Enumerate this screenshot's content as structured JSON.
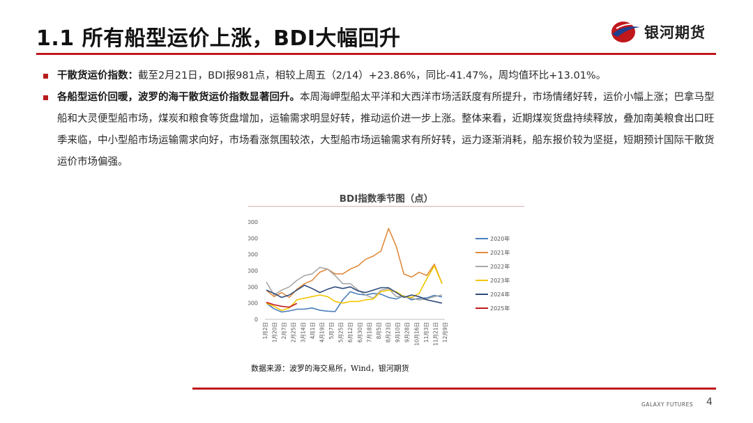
{
  "header": {
    "title": "1.1 所有船型运价上涨，BDI大幅回升",
    "logo_text": "银河期货",
    "accent_color": "#c0171c"
  },
  "bullets": [
    {
      "lead": "干散货运价指数：",
      "text": "截至2月21日，BDI报981点，相较上周五（2/14）+23.86%，同比-41.47%，周均值环比+13.01%。"
    },
    {
      "lead": "各船型运价回暖，波罗的海干散货运价指数显著回升。",
      "text": "本周海岬型船太平洋和大西洋市场活跃度有所提升，市场情绪好转，运价小幅上涨；巴拿马型船和大灵便型船市场，煤炭和粮食等货盘增加，运输需求明显好转，推动运价进一步上涨。整体来看，近期煤炭货盘持续释放，叠加南美粮食出口旺季来临，中小型船市场运输需求向好，市场看涨氛围较浓，大型船市场运输需求有所好转，运力逐渐消耗，船东报价较为坚挺，短期预计国际干散货运价市场偏强。"
    }
  ],
  "chart_data": {
    "type": "line",
    "title": "BDI指数季节图（点）",
    "ylim": [
      0,
      6000
    ],
    "yticks": [
      "6000",
      "5000",
      "4000",
      "3000",
      "2000",
      "1000",
      "0"
    ],
    "xticks": [
      "1月2日",
      "1月20日",
      "2月7日",
      "2月25日",
      "3月14日",
      "4月1日",
      "4月19日",
      "5月7日",
      "5月25日",
      "6月12日",
      "6月30日",
      "7月18日",
      "8月5日",
      "8月23日",
      "9月10日",
      "9月28日",
      "10月16日",
      "11月3日",
      "11月21日",
      "12月9日"
    ],
    "legend_position": "right",
    "series": [
      {
        "name": "2020年",
        "color": "#4a7ebb",
        "values": [
          1000,
          650,
          450,
          520,
          620,
          630,
          700,
          560,
          500,
          480,
          1200,
          1700,
          1550,
          1500,
          1600,
          1550,
          1350,
          1250,
          1450,
          1200,
          1300,
          1320,
          1480,
          1380
        ]
      },
      {
        "name": "2021年",
        "color": "#e08a3c",
        "values": [
          1800,
          1400,
          1650,
          1350,
          1850,
          2200,
          2400,
          2900,
          3100,
          2800,
          2800,
          3100,
          3300,
          3700,
          3900,
          4200,
          5600,
          4500,
          2800,
          2600,
          2900,
          2700,
          3400,
          2200
        ]
      },
      {
        "name": "2022年",
        "color": "#a6a6a6",
        "values": [
          2300,
          1500,
          1800,
          2000,
          2400,
          2700,
          2800,
          3200,
          3100,
          2700,
          2200,
          2200,
          1800,
          1500,
          1300,
          1800,
          1900,
          1400,
          1400,
          1300,
          1200,
          1250,
          1400,
          1500
        ]
      },
      {
        "name": "2023年",
        "color": "#f2c500",
        "values": [
          1000,
          800,
          550,
          700,
          1200,
          1300,
          1400,
          1500,
          1400,
          1100,
          1000,
          1100,
          1100,
          1200,
          1250,
          1700,
          1800,
          1700,
          1400,
          1350,
          1600,
          2500,
          3300,
          2200
        ]
      },
      {
        "name": "2024年",
        "color": "#2e4a7a",
        "values": [
          1800,
          1600,
          1350,
          1500,
          1800,
          2100,
          1900,
          1650,
          1850,
          2000,
          1900,
          2000,
          1750,
          1650,
          1800,
          1950,
          1950,
          1650,
          1350,
          1500,
          1400,
          1200,
          1100,
          1000
        ]
      },
      {
        "name": "2025年",
        "color": "#c0171c",
        "values": [
          1050,
          900,
          800,
          750,
          980
        ]
      }
    ],
    "source": "数据来源：波罗的海交易所，Wind，银河期货"
  },
  "footer": {
    "brand": "GALAXY FUTURES",
    "page_number": "4"
  }
}
